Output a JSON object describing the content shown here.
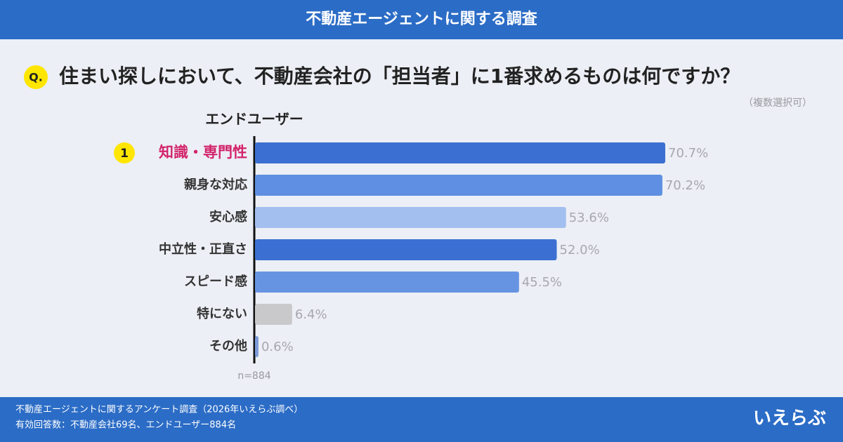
{
  "header": {
    "title": "不動産エージェントに関する調査"
  },
  "question": {
    "badge": "Q.",
    "text": "住まい探しにおいて、不動産会社の「担当者」に1番求めるものは何ですか？",
    "note": "（複数選択可）"
  },
  "chart_data": {
    "type": "bar",
    "orientation": "horizontal",
    "subtitle": "エンドユーザー",
    "rank_badge": "1",
    "categories": [
      "知識・専門性",
      "親身な対応",
      "安心感",
      "中立性・正直さ",
      "スピード感",
      "特にない",
      "その他"
    ],
    "values": [
      70.7,
      70.2,
      53.6,
      52.0,
      45.5,
      6.4,
      0.6
    ],
    "value_labels": [
      "70.7%",
      "70.2%",
      "53.6%",
      "52.0%",
      "45.5%",
      "6.4%",
      "0.6%"
    ],
    "colors": [
      "#3b70d2",
      "#5e8fe2",
      "#a3bff0",
      "#3b70d2",
      "#6794e2",
      "#c9c9cc",
      "#7b9bd8"
    ],
    "highlight_color": "#d3246c",
    "sample_note": "n=884"
  },
  "footer": {
    "lines": [
      "不動産エージェントに関するアンケート調査（2026年いえらぶ調べ）",
      "有効回答数：不動産会社69名、エンドユーザー884名"
    ],
    "logo": "いえらぶ"
  }
}
